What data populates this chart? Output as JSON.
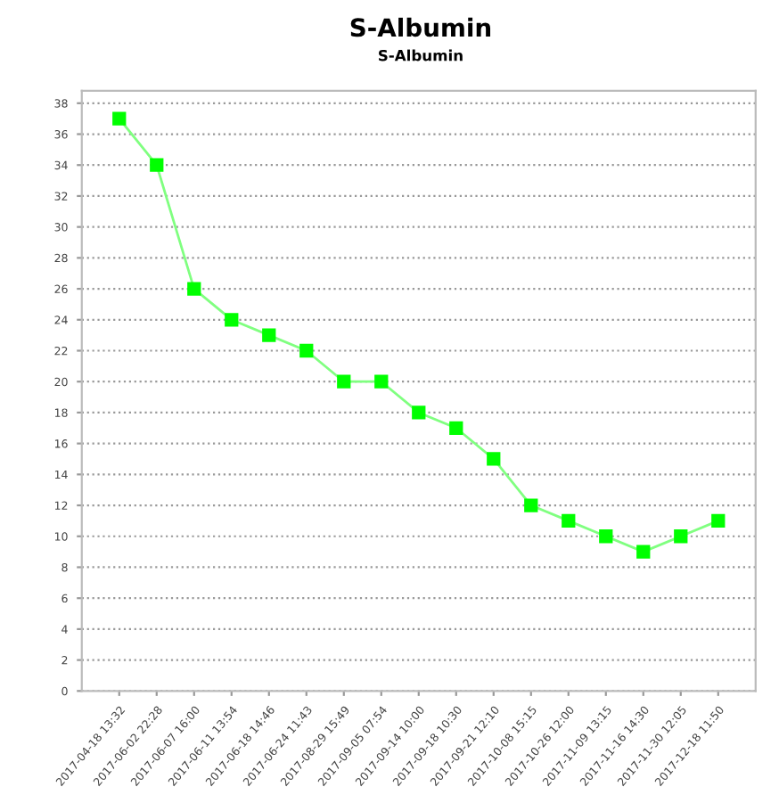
{
  "chart_data": {
    "type": "line",
    "title": "S-Albumin",
    "subtitle": "S-Albumin",
    "categories": [
      "2017-04-18 13:32",
      "2017-06-02 22:28",
      "2017-06-07 16:00",
      "2017-06-11 13:54",
      "2017-06-18 14:46",
      "2017-06-24 11:43",
      "2017-08-29 15:49",
      "2017-09-05 07:54",
      "2017-09-14 10:00",
      "2017-09-18 10:30",
      "2017-09-21 12:10",
      "2017-10-08 15:15",
      "2017-10-26 12:00",
      "2017-11-09 13:15",
      "2017-11-16 14:30",
      "2017-11-30 12:05",
      "2017-12-18 11:50"
    ],
    "series": [
      {
        "color": "#00ff00",
        "values": [
          37,
          34,
          26,
          24,
          23,
          22,
          20,
          20,
          18,
          17,
          15,
          12,
          11,
          10,
          9,
          10,
          11
        ]
      }
    ],
    "ylim": [
      0,
      38.8
    ],
    "yticks": [
      0,
      2,
      4,
      6,
      8,
      10,
      12,
      14,
      16,
      18,
      20,
      22,
      24,
      26,
      28,
      30,
      32,
      34,
      36,
      38
    ],
    "grid": "y",
    "marker": "square",
    "line_style": "solid"
  }
}
